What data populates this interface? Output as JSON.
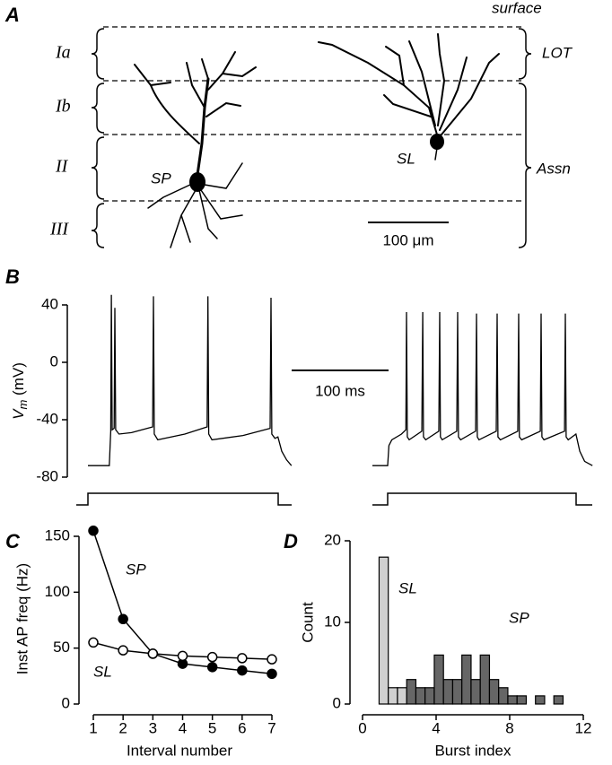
{
  "panel_a": {
    "label": "A",
    "surface": "surface",
    "layers": [
      "Ia",
      "Ib",
      "II",
      "III"
    ],
    "regions": [
      "LOT",
      "Assn"
    ],
    "cells": [
      "SP",
      "SL"
    ],
    "scalebar": "100 μm"
  },
  "chart_data": [
    {
      "type": "trace",
      "panel": "B",
      "ylabel": [
        "V",
        "m",
        " (mV)"
      ],
      "ylim": [
        -80,
        40
      ],
      "yticks": [
        -80,
        -40,
        0,
        40
      ],
      "scalebar": {
        "value": 100,
        "label": "100 ms"
      },
      "series": [
        {
          "color": "#000000",
          "x": [
            0,
            22,
            23.5,
            24.2,
            25,
            27,
            27.8,
            28.6,
            32,
            45,
            66.8,
            67.6,
            68.4,
            72,
            100,
            123,
            123.8,
            124.6,
            128,
            160,
            188,
            188.9,
            189.7,
            193,
            196,
            200,
            205,
            210
          ],
          "values": [
            -72,
            -72,
            -48,
            47,
            -47,
            -46,
            38,
            -47,
            -50,
            -49,
            -45,
            46,
            -50,
            -54,
            -50,
            -45,
            46,
            -50,
            -54,
            -51,
            -46,
            45,
            -50,
            -53,
            -52,
            -62,
            -68,
            -72
          ]
        },
        {
          "color": "#000000",
          "x": [
            0,
            15.7,
            17,
            20,
            30,
            34.5,
            35.2,
            36,
            38,
            51,
            51.9,
            52.7,
            55,
            68.5,
            69.4,
            70.2,
            72,
            87,
            88,
            88.8,
            91,
            106.5,
            107.4,
            108.2,
            110,
            127.8,
            128.7,
            129.5,
            132,
            150,
            150.9,
            151.7,
            154,
            173.2,
            174.1,
            174.9,
            177,
            198.2,
            199.1,
            199.9,
            202,
            210,
            214,
            219,
            227
          ],
          "values": [
            -72,
            -72,
            -58,
            -54,
            -50,
            -47,
            35,
            -52,
            -54,
            -48,
            35,
            -52,
            -54,
            -48,
            35,
            -52,
            -54,
            -48,
            35,
            -52,
            -54,
            -48,
            34,
            -52,
            -54,
            -48,
            34,
            -52,
            -54,
            -48,
            34,
            -52,
            -54,
            -48,
            34,
            -52,
            -54,
            -48,
            34,
            -52,
            -54,
            -50,
            -62,
            -69,
            -72
          ]
        }
      ]
    },
    {
      "type": "line",
      "panel": "C",
      "xlabel": "Interval number",
      "ylabel": "Inst AP freq (Hz)",
      "x": [
        1,
        2,
        3,
        4,
        5,
        6,
        7
      ],
      "xlim": [
        1,
        7
      ],
      "xticks": [
        1,
        2,
        3,
        4,
        5,
        6,
        7
      ],
      "ylim": [
        0,
        150
      ],
      "yticks": [
        0,
        50,
        100,
        150
      ],
      "series": [
        {
          "name": "SP",
          "color": "#000000",
          "values": [
            155,
            76,
            45,
            36,
            33,
            30,
            27
          ]
        },
        {
          "name": "SL",
          "color": "#ffffff",
          "values": [
            55,
            48,
            45,
            43,
            42,
            41,
            40
          ]
        }
      ]
    },
    {
      "type": "histogram",
      "panel": "D",
      "xlabel": "Burst index",
      "ylabel": "Count",
      "xlim": [
        0,
        12
      ],
      "xticks": [
        0,
        4,
        8,
        12
      ],
      "ylim": [
        0,
        20
      ],
      "yticks": [
        0,
        10,
        20
      ],
      "series": [
        {
          "name": "SL",
          "color": "#d0d0d0",
          "bins": [
            0.9,
            1.4,
            1.9,
            2.4
          ],
          "values": [
            18,
            2,
            2
          ]
        },
        {
          "name": "SP",
          "color": "#666666",
          "bins": [
            2.4,
            2.9,
            3.4,
            3.9,
            4.4,
            4.9,
            5.4,
            5.9,
            6.4,
            6.9,
            7.4,
            7.9,
            8.4,
            8.9,
            9.4,
            9.9,
            10.4,
            10.9
          ],
          "values": [
            3,
            2,
            2,
            6,
            3,
            3,
            6,
            3,
            6,
            3,
            2,
            1,
            1,
            0,
            1,
            0,
            1
          ]
        }
      ]
    }
  ]
}
